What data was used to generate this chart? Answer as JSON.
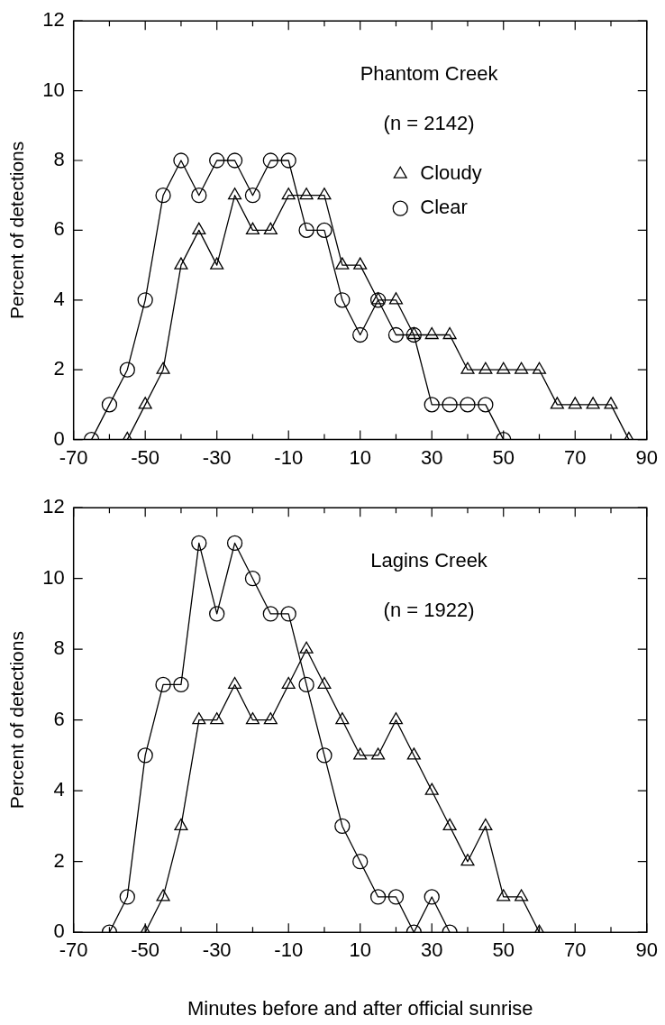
{
  "chart_data": [
    {
      "type": "line",
      "ylabel": "Percent of detections",
      "annotations": [
        "Phantom Creek",
        "(n = 2142)"
      ],
      "xlim": [
        -70,
        90
      ],
      "ylim": [
        0,
        12
      ],
      "xticks": [
        -70,
        {
          "value": -60,
          "label": null
        },
        -50,
        {
          "value": -40,
          "label": null
        },
        -30,
        {
          "value": -20,
          "label": null
        },
        -10,
        {
          "value": 0,
          "label": null
        },
        10,
        {
          "value": 20,
          "label": null
        },
        30,
        {
          "value": 40,
          "label": null
        },
        50,
        {
          "value": 60,
          "label": null
        },
        70,
        {
          "value": 80,
          "label": null
        },
        90
      ],
      "yticks": [
        0,
        2,
        4,
        6,
        8,
        10,
        12
      ],
      "legend": "top right",
      "grid": false,
      "series": [
        {
          "name": "Cloudy",
          "color": "#000000",
          "marker": "triangle",
          "x": [
            -55,
            -50,
            -45,
            -40,
            -35,
            -30,
            -25,
            -20,
            -15,
            -10,
            -5,
            0,
            5,
            10,
            15,
            20,
            25,
            30,
            35,
            40,
            45,
            50,
            55,
            60,
            65,
            70,
            75,
            80,
            85
          ],
          "values": [
            0,
            1,
            2,
            5,
            6,
            5,
            7,
            6,
            6,
            7,
            7,
            7,
            5,
            5,
            4,
            4,
            3,
            3,
            3,
            2,
            2,
            2,
            2,
            2,
            1,
            1,
            1,
            1,
            0
          ]
        },
        {
          "name": "Clear",
          "color": "#000000",
          "marker": "circle",
          "x": [
            -65,
            -60,
            -55,
            -50,
            -45,
            -40,
            -35,
            -30,
            -25,
            -20,
            -15,
            -10,
            -5,
            0,
            5,
            10,
            15,
            20,
            25,
            30,
            35,
            40,
            45,
            50
          ],
          "values": [
            0,
            1,
            2,
            4,
            7,
            8,
            7,
            8,
            8,
            7,
            8,
            8,
            6,
            6,
            4,
            3,
            4,
            3,
            3,
            1,
            1,
            1,
            1,
            0
          ]
        }
      ]
    },
    {
      "type": "line",
      "ylabel": "Percent of detections",
      "xlabel": "Minutes before and after official sunrise",
      "annotations": [
        "Lagins Creek",
        "(n = 1922)"
      ],
      "xlim": [
        -70,
        90
      ],
      "ylim": [
        0,
        12
      ],
      "xticks": [
        -70,
        {
          "value": -60,
          "label": null
        },
        -50,
        {
          "value": -40,
          "label": null
        },
        -30,
        {
          "value": -20,
          "label": null
        },
        -10,
        {
          "value": 0,
          "label": null
        },
        10,
        {
          "value": 20,
          "label": null
        },
        30,
        {
          "value": 40,
          "label": null
        },
        50,
        {
          "value": 60,
          "label": null
        },
        70,
        {
          "value": 80,
          "label": null
        },
        90
      ],
      "yticks": [
        0,
        2,
        4,
        6,
        8,
        10,
        12
      ],
      "grid": false,
      "series": [
        {
          "color": "#000000",
          "marker": "triangle",
          "x": [
            -50,
            -45,
            -40,
            -35,
            -30,
            -25,
            -20,
            -15,
            -10,
            -5,
            0,
            5,
            10,
            15,
            20,
            25,
            30,
            35,
            40,
            45,
            50,
            55,
            60
          ],
          "values": [
            0,
            1,
            3,
            6,
            6,
            7,
            6,
            6,
            7,
            8,
            7,
            6,
            5,
            5,
            6,
            5,
            4,
            3,
            2,
            3,
            1,
            1,
            0
          ]
        },
        {
          "color": "#000000",
          "marker": "circle",
          "x": [
            -60,
            -55,
            -50,
            -45,
            -40,
            -35,
            -30,
            -25,
            -20,
            -15,
            -10,
            -5,
            0,
            5,
            10,
            15,
            20,
            25,
            30,
            35
          ],
          "values": [
            0,
            1,
            5,
            7,
            7,
            11,
            9,
            11,
            10,
            9,
            9,
            7,
            5,
            3,
            2,
            1,
            1,
            0,
            1,
            0
          ]
        }
      ]
    }
  ]
}
